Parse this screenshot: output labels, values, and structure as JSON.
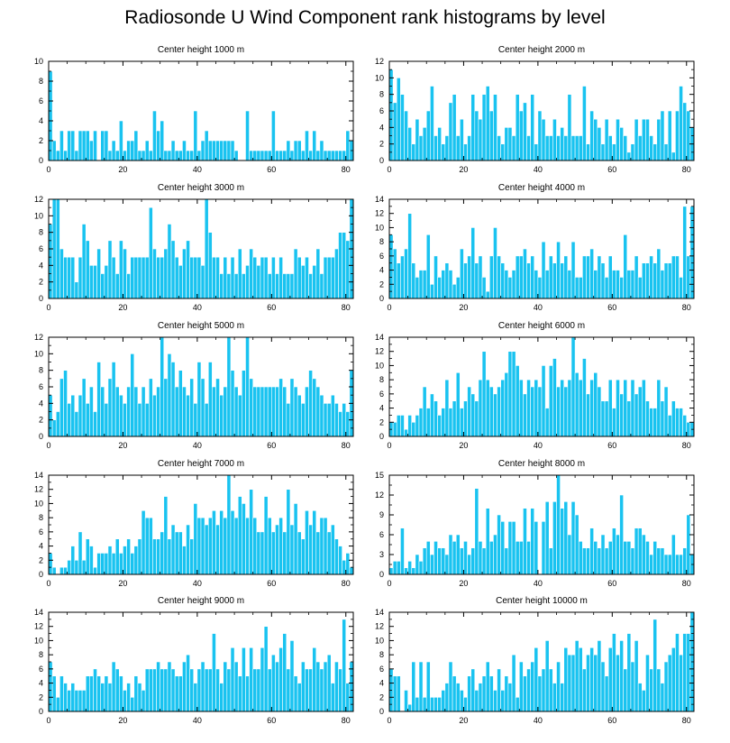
{
  "title": "Radiosonde U Wind Component rank histograms by level",
  "colors": {
    "bar": "#19C3F0",
    "bar_edge": "#ffffff",
    "axis": "#000000"
  },
  "chart_data": [
    {
      "type": "bar",
      "title": "Center height 1000 m",
      "xlim": [
        0,
        82
      ],
      "ylim": [
        0,
        10
      ],
      "xticks": [
        0,
        20,
        40,
        60,
        80
      ],
      "yticks": [
        0,
        2,
        4,
        6,
        8,
        10
      ],
      "values": [
        9,
        2,
        1,
        3,
        1,
        3,
        3,
        1,
        3,
        3,
        3,
        2,
        3,
        0,
        3,
        3,
        1,
        2,
        1,
        4,
        1,
        2,
        2,
        3,
        1,
        1,
        2,
        1,
        5,
        3,
        4,
        1,
        1,
        2,
        1,
        1,
        2,
        1,
        1,
        5,
        1,
        2,
        3,
        2,
        2,
        2,
        2,
        2,
        2,
        2,
        1,
        0,
        0,
        5,
        1,
        1,
        1,
        1,
        1,
        1,
        5,
        1,
        1,
        1,
        2,
        1,
        2,
        2,
        1,
        3,
        1,
        3,
        1,
        2,
        1,
        1,
        1,
        1,
        1,
        1,
        3,
        2
      ]
    },
    {
      "type": "bar",
      "title": "Center height 2000 m",
      "xlim": [
        0,
        82
      ],
      "ylim": [
        0,
        12
      ],
      "xticks": [
        0,
        20,
        40,
        60,
        80
      ],
      "yticks": [
        0,
        2,
        4,
        6,
        8,
        10,
        12
      ],
      "values": [
        11,
        7,
        10,
        8,
        6,
        4,
        2,
        5,
        3,
        4,
        6,
        9,
        3,
        4,
        2,
        3,
        7,
        8,
        3,
        5,
        2,
        3,
        8,
        6,
        5,
        8,
        9,
        6,
        8,
        3,
        2,
        4,
        4,
        3,
        8,
        6,
        7,
        3,
        8,
        2,
        6,
        5,
        3,
        3,
        5,
        3,
        4,
        3,
        8,
        3,
        3,
        3,
        9,
        2,
        6,
        5,
        4,
        2,
        5,
        3,
        2,
        5,
        4,
        3,
        1,
        2,
        5,
        3,
        5,
        5,
        3,
        2,
        5,
        6,
        2,
        6,
        1,
        6,
        9,
        7,
        6,
        4
      ]
    },
    {
      "type": "bar",
      "title": "Center height 3000 m",
      "xlim": [
        0,
        82
      ],
      "ylim": [
        0,
        12
      ],
      "xticks": [
        0,
        20,
        40,
        60,
        80
      ],
      "yticks": [
        0,
        2,
        4,
        6,
        8,
        10,
        12
      ],
      "values": [
        9,
        12,
        12,
        6,
        5,
        5,
        5,
        2,
        5,
        9,
        7,
        4,
        4,
        6,
        3,
        4,
        7,
        5,
        3,
        7,
        6,
        3,
        5,
        5,
        5,
        5,
        5,
        11,
        6,
        5,
        5,
        6,
        9,
        7,
        5,
        4,
        6,
        7,
        5,
        5,
        5,
        4,
        12,
        8,
        5,
        5,
        3,
        5,
        3,
        5,
        3,
        6,
        3,
        4,
        6,
        5,
        4,
        5,
        5,
        3,
        5,
        3,
        5,
        3,
        3,
        3,
        6,
        5,
        4,
        5,
        3,
        4,
        6,
        3,
        5,
        5,
        5,
        6,
        8,
        8,
        7,
        12
      ]
    },
    {
      "type": "bar",
      "title": "Center height 4000 m",
      "xlim": [
        0,
        82
      ],
      "ylim": [
        0,
        14
      ],
      "xticks": [
        0,
        20,
        40,
        60,
        80
      ],
      "yticks": [
        0,
        2,
        4,
        6,
        8,
        10,
        12,
        14
      ],
      "values": [
        9,
        7,
        5,
        6,
        7,
        12,
        5,
        3,
        4,
        4,
        9,
        2,
        6,
        3,
        4,
        5,
        4,
        2,
        3,
        7,
        5,
        6,
        10,
        5,
        6,
        3,
        1,
        6,
        10,
        6,
        5,
        4,
        3,
        4,
        6,
        6,
        7,
        5,
        6,
        4,
        3,
        8,
        4,
        6,
        5,
        8,
        5,
        6,
        4,
        8,
        3,
        3,
        6,
        6,
        7,
        4,
        6,
        5,
        3,
        6,
        4,
        4,
        3,
        9,
        4,
        4,
        6,
        3,
        5,
        5,
        6,
        5,
        7,
        4,
        5,
        5,
        6,
        6,
        3,
        13,
        6,
        13
      ]
    },
    {
      "type": "bar",
      "title": "Center height 5000 m",
      "xlim": [
        0,
        82
      ],
      "ylim": [
        0,
        12
      ],
      "xticks": [
        0,
        20,
        40,
        60,
        80
      ],
      "yticks": [
        0,
        2,
        4,
        6,
        8,
        10,
        12
      ],
      "values": [
        5,
        2,
        3,
        7,
        8,
        4,
        5,
        3,
        5,
        7,
        4,
        6,
        3,
        9,
        6,
        4,
        7,
        9,
        6,
        5,
        4,
        6,
        10,
        6,
        4,
        6,
        4,
        7,
        5,
        6,
        12,
        7,
        10,
        9,
        6,
        8,
        6,
        5,
        7,
        4,
        9,
        7,
        4,
        9,
        6,
        7,
        5,
        6,
        12,
        8,
        6,
        5,
        8,
        12,
        7,
        6,
        6,
        6,
        6,
        6,
        6,
        6,
        7,
        6,
        4,
        7,
        6,
        5,
        4,
        6,
        8,
        7,
        6,
        5,
        4,
        4,
        5,
        4,
        3,
        4,
        3,
        8
      ]
    },
    {
      "type": "bar",
      "title": "Center height 6000 m",
      "xlim": [
        0,
        82
      ],
      "ylim": [
        0,
        14
      ],
      "xticks": [
        0,
        20,
        40,
        60,
        80
      ],
      "yticks": [
        0,
        2,
        4,
        6,
        8,
        10,
        12,
        14
      ],
      "values": [
        2,
        2,
        3,
        3,
        1,
        3,
        2,
        3,
        4,
        7,
        4,
        6,
        5,
        3,
        4,
        8,
        4,
        5,
        9,
        4,
        5,
        7,
        6,
        5,
        8,
        12,
        8,
        7,
        6,
        7,
        8,
        9,
        12,
        12,
        10,
        8,
        6,
        8,
        7,
        8,
        7,
        10,
        4,
        10,
        11,
        7,
        8,
        7,
        8,
        14,
        9,
        8,
        11,
        6,
        8,
        9,
        7,
        5,
        5,
        8,
        4,
        8,
        6,
        8,
        5,
        8,
        6,
        7,
        8,
        5,
        4,
        4,
        8,
        5,
        7,
        3,
        5,
        4,
        4,
        3,
        2,
        2
      ]
    },
    {
      "type": "bar",
      "title": "Center height 7000 m",
      "xlim": [
        0,
        82
      ],
      "ylim": [
        0,
        14
      ],
      "xticks": [
        0,
        20,
        40,
        60,
        80
      ],
      "yticks": [
        0,
        2,
        4,
        6,
        8,
        10,
        12,
        14
      ],
      "values": [
        3,
        1,
        0,
        1,
        1,
        2,
        4,
        2,
        6,
        2,
        5,
        4,
        1,
        3,
        3,
        3,
        4,
        3,
        5,
        3,
        4,
        5,
        3,
        4,
        5,
        9,
        8,
        8,
        5,
        5,
        6,
        11,
        5,
        7,
        6,
        6,
        4,
        7,
        5,
        10,
        8,
        8,
        7,
        8,
        9,
        7,
        9,
        8,
        14,
        9,
        8,
        11,
        10,
        8,
        12,
        8,
        6,
        6,
        11,
        8,
        6,
        7,
        8,
        6,
        12,
        7,
        10,
        6,
        5,
        9,
        7,
        9,
        6,
        8,
        8,
        6,
        7,
        5,
        4,
        2,
        3,
        1,
        1
      ]
    },
    {
      "type": "bar",
      "title": "Center height 8000 m",
      "xlim": [
        0,
        82
      ],
      "ylim": [
        0,
        15
      ],
      "xticks": [
        0,
        20,
        40,
        60,
        80
      ],
      "yticks": [
        0,
        3,
        6,
        9,
        12,
        15
      ],
      "values": [
        1,
        2,
        2,
        7,
        1,
        2,
        1,
        3,
        2,
        4,
        5,
        3,
        5,
        4,
        4,
        3,
        6,
        5,
        6,
        4,
        5,
        3,
        4,
        13,
        5,
        4,
        10,
        5,
        6,
        9,
        8,
        4,
        8,
        8,
        5,
        5,
        10,
        5,
        10,
        8,
        0,
        8,
        11,
        4,
        11,
        15,
        10,
        11,
        6,
        11,
        9,
        5,
        4,
        4,
        7,
        5,
        4,
        6,
        4,
        5,
        7,
        6,
        12,
        5,
        5,
        4,
        7,
        7,
        6,
        5,
        3,
        5,
        4,
        4,
        3,
        3,
        6,
        3,
        3,
        4,
        9,
        3,
        2
      ]
    },
    {
      "type": "bar",
      "title": "Center height 9000 m",
      "xlim": [
        0,
        82
      ],
      "ylim": [
        0,
        14
      ],
      "xticks": [
        0,
        20,
        40,
        60,
        80
      ],
      "yticks": [
        0,
        2,
        4,
        6,
        8,
        10,
        12,
        14
      ],
      "values": [
        7,
        5,
        2,
        5,
        4,
        3,
        4,
        3,
        3,
        3,
        5,
        5,
        6,
        5,
        4,
        5,
        4,
        7,
        6,
        5,
        3,
        4,
        2,
        5,
        4,
        3,
        6,
        6,
        6,
        7,
        6,
        6,
        7,
        6,
        5,
        5,
        7,
        8,
        6,
        4,
        6,
        7,
        6,
        6,
        11,
        6,
        4,
        7,
        6,
        9,
        7,
        5,
        9,
        5,
        9,
        6,
        6,
        9,
        12,
        6,
        8,
        7,
        9,
        11,
        6,
        10,
        5,
        4,
        7,
        6,
        6,
        9,
        7,
        6,
        7,
        8,
        4,
        7,
        6,
        13,
        4,
        7,
        6
      ]
    },
    {
      "type": "bar",
      "title": "Center height 10000 m",
      "xlim": [
        0,
        82
      ],
      "ylim": [
        0,
        14
      ],
      "xticks": [
        0,
        20,
        40,
        60,
        80
      ],
      "yticks": [
        0,
        2,
        4,
        6,
        8,
        10,
        12,
        14
      ],
      "values": [
        6,
        5,
        5,
        0,
        3,
        1,
        7,
        2,
        7,
        2,
        7,
        2,
        2,
        2,
        3,
        4,
        7,
        5,
        4,
        3,
        2,
        5,
        6,
        3,
        4,
        5,
        7,
        5,
        3,
        6,
        3,
        5,
        4,
        8,
        2,
        7,
        5,
        6,
        7,
        9,
        5,
        6,
        10,
        6,
        4,
        7,
        4,
        9,
        8,
        8,
        10,
        9,
        6,
        8,
        9,
        8,
        10,
        7,
        5,
        9,
        11,
        8,
        10,
        6,
        11,
        7,
        10,
        4,
        3,
        8,
        6,
        13,
        6,
        4,
        7,
        8,
        9,
        11,
        8,
        11,
        11,
        14,
        12
      ]
    }
  ]
}
